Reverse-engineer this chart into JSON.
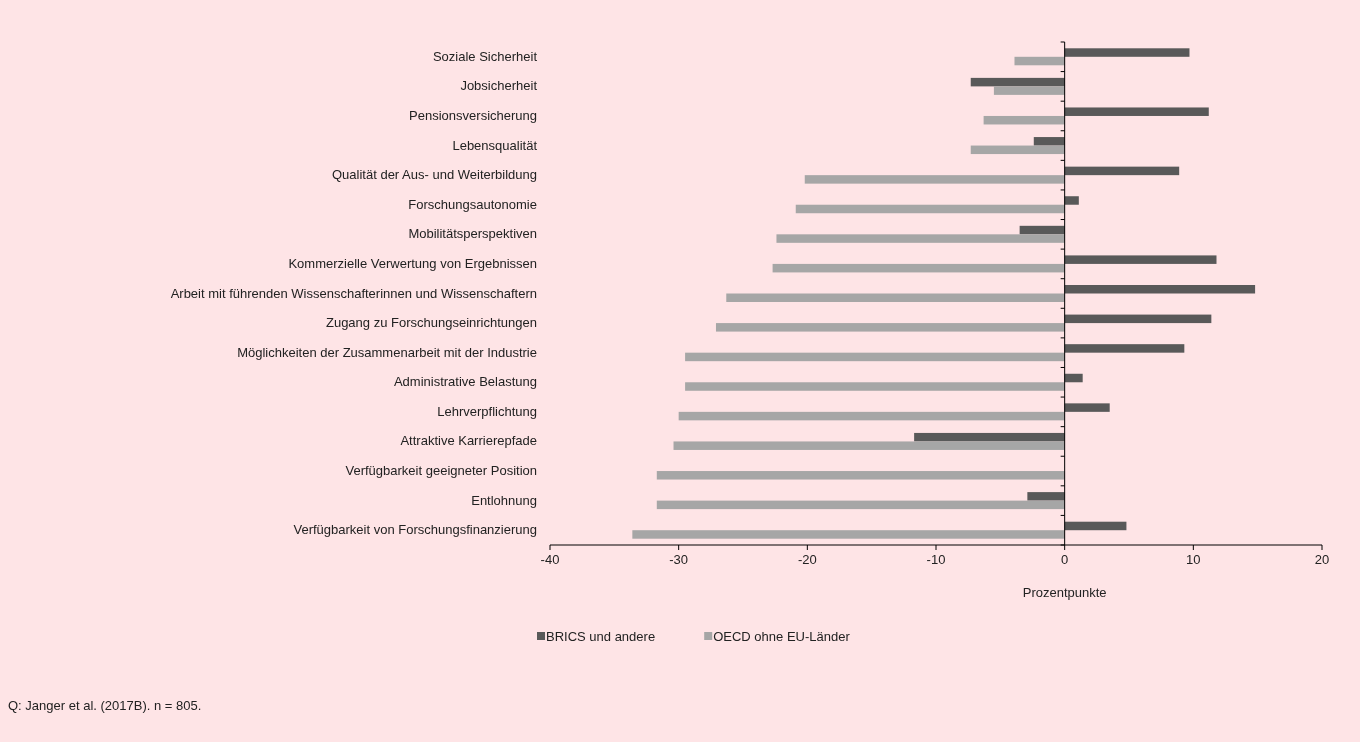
{
  "chart_data": {
    "type": "bar",
    "orientation": "horizontal",
    "xlabel": "Prozentpunkte",
    "categories": [
      "Soziale Sicherheit",
      "Jobsicherheit",
      "Pensionsversicherung",
      "Lebensqualität",
      "Qualität der Aus- und Weiterbildung",
      "Forschungsautonomie",
      "Mobilitätsperspektiven",
      "Kommerzielle Verwertung von Ergebnissen",
      "Arbeit mit führenden Wissenschafterinnen und Wissenschaftern",
      "Zugang zu Forschungseinrichtungen",
      "Möglichkeiten der Zusammenarbeit mit der Industrie",
      "Administrative Belastung",
      "Lehrverpflichtung",
      "Attraktive Karrierepfade",
      "Verfügbarkeit geeigneter Position",
      "Entlohnung",
      "Verfügbarkeit von Forschungsfinanzierung"
    ],
    "series": [
      {
        "name": "BRICS und andere",
        "color": "#595959",
        "values": [
          9.7,
          -7.3,
          11.2,
          -2.4,
          8.9,
          1.1,
          -3.5,
          11.8,
          14.8,
          11.4,
          9.3,
          1.4,
          3.5,
          -11.7,
          0,
          -2.9,
          4.8
        ]
      },
      {
        "name": "OECD ohne EU-Länder",
        "color": "#a6a6a6",
        "values": [
          -3.9,
          -5.5,
          -6.3,
          -7.3,
          -20.2,
          -20.9,
          -22.4,
          -22.7,
          -26.3,
          -27.1,
          -29.5,
          -29.5,
          -30,
          -30.4,
          -31.7,
          -31.7,
          -33.6
        ]
      }
    ],
    "xlim": [
      -40,
      20
    ],
    "xticks": [
      -40,
      -30,
      -20,
      -10,
      0,
      10,
      20
    ],
    "legend": "bottom",
    "annotations": [
      "Q: Janger et al. (2017B). n = 805."
    ]
  }
}
